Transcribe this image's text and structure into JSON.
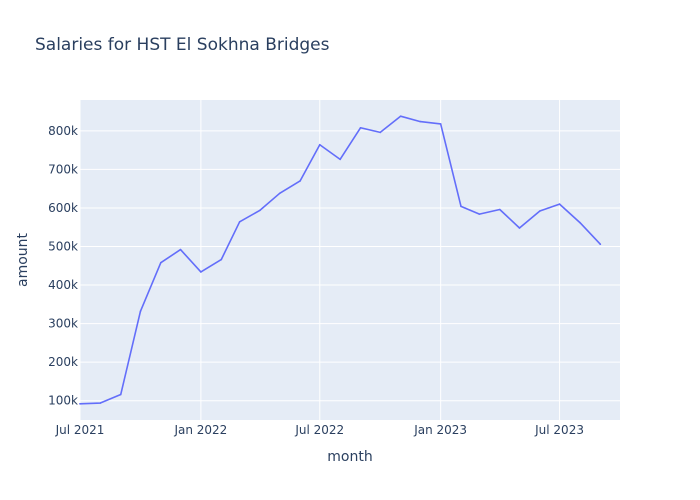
{
  "chart_data": {
    "type": "line",
    "title": "Salaries for HST El Sokhna Bridges",
    "xlabel": "month",
    "ylabel": "amount",
    "x_axis": {
      "type": "date",
      "range": [
        "2021-07-01",
        "2023-10-01"
      ],
      "ticks": [
        {
          "value": "2021-07-01",
          "label": "Jul 2021"
        },
        {
          "value": "2022-01-01",
          "label": "Jan 2022"
        },
        {
          "value": "2022-07-01",
          "label": "Jul 2022"
        },
        {
          "value": "2023-01-01",
          "label": "Jan 2023"
        },
        {
          "value": "2023-07-01",
          "label": "Jul 2023"
        }
      ]
    },
    "y_axis": {
      "range": [
        50000,
        880000
      ],
      "ticks": [
        {
          "value": 100000,
          "label": "100k"
        },
        {
          "value": 200000,
          "label": "200k"
        },
        {
          "value": 300000,
          "label": "300k"
        },
        {
          "value": 400000,
          "label": "400k"
        },
        {
          "value": 500000,
          "label": "500k"
        },
        {
          "value": 600000,
          "label": "600k"
        },
        {
          "value": 700000,
          "label": "700k"
        },
        {
          "value": 800000,
          "label": "800k"
        }
      ]
    },
    "grid": true,
    "series": [
      {
        "color": "#636efa",
        "points": [
          {
            "x": "2021-07-01",
            "y": 92000
          },
          {
            "x": "2021-08-01",
            "y": 94000
          },
          {
            "x": "2021-09-01",
            "y": 116000
          },
          {
            "x": "2021-10-01",
            "y": 332000
          },
          {
            "x": "2021-11-01",
            "y": 458000
          },
          {
            "x": "2021-12-01",
            "y": 492000
          },
          {
            "x": "2022-01-01",
            "y": 434000
          },
          {
            "x": "2022-02-01",
            "y": 466000
          },
          {
            "x": "2022-03-01",
            "y": 564000
          },
          {
            "x": "2022-04-01",
            "y": 594000
          },
          {
            "x": "2022-05-01",
            "y": 638000
          },
          {
            "x": "2022-06-01",
            "y": 670000
          },
          {
            "x": "2022-07-01",
            "y": 764000
          },
          {
            "x": "2022-08-01",
            "y": 726000
          },
          {
            "x": "2022-09-01",
            "y": 808000
          },
          {
            "x": "2022-10-01",
            "y": 796000
          },
          {
            "x": "2022-11-01",
            "y": 838000
          },
          {
            "x": "2022-12-01",
            "y": 824000
          },
          {
            "x": "2023-01-01",
            "y": 818000
          },
          {
            "x": "2023-02-01",
            "y": 604000
          },
          {
            "x": "2023-03-01",
            "y": 584000
          },
          {
            "x": "2023-04-01",
            "y": 596000
          },
          {
            "x": "2023-05-01",
            "y": 548000
          },
          {
            "x": "2023-06-01",
            "y": 592000
          },
          {
            "x": "2023-07-01",
            "y": 610000
          },
          {
            "x": "2023-08-01",
            "y": 562000
          },
          {
            "x": "2023-09-01",
            "y": 506000
          }
        ]
      }
    ]
  }
}
